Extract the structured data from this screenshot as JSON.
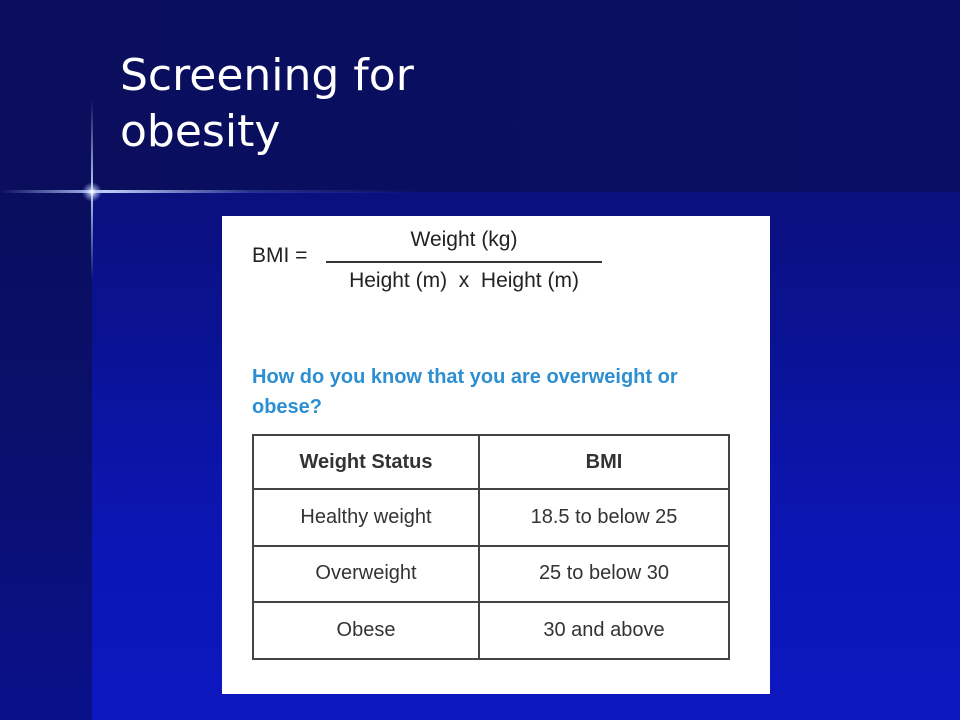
{
  "slide": {
    "title_lines": [
      "Screening for",
      "obesity"
    ]
  },
  "figure": {
    "formula": {
      "prefix": "BMI =",
      "numerator": "Weight (kg)",
      "denominator": "Height (m)  x  Height (m)"
    },
    "question": "How do you know that you are overweight or obese?",
    "table": {
      "headers": [
        "Weight Status",
        "BMI"
      ],
      "rows": [
        [
          "Healthy weight",
          "18.5 to below 25"
        ],
        [
          "Overweight",
          "25 to below 30"
        ],
        [
          "Obese",
          "30 and above"
        ]
      ]
    }
  },
  "colors": {
    "background": "#0b14a8",
    "title_text": "#ffffff",
    "question_text": "#2d8fd1"
  }
}
